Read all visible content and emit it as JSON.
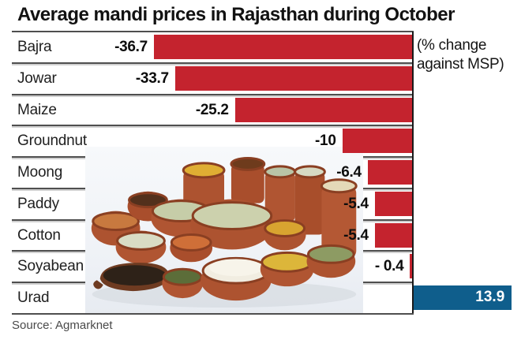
{
  "title": "Average mandi prices in Rajasthan during October",
  "note": "(% change against MSP)",
  "source": "Source: Agmarknet",
  "image": {
    "name": "grains-and-pulses-in-terracotta-pots"
  },
  "colors": {
    "negative_bar": "#c4232e",
    "positive_bar": "#0f5e8c",
    "separator": "#4f4f4f",
    "axis": "#1a1a1a"
  },
  "chart_data": {
    "type": "bar",
    "orientation": "horizontal",
    "title": "Average mandi prices in Rajasthan during October",
    "unit_note": "(% change against MSP)",
    "source": "Source: Agmarknet",
    "categories": [
      "Bajra",
      "Jowar",
      "Maize",
      "Groundnut",
      "Moong",
      "Paddy",
      "Cotton",
      "Soyabean",
      "Urad"
    ],
    "values": [
      -36.7,
      -33.7,
      -25.2,
      -10,
      -6.4,
      -5.4,
      -5.4,
      -0.4,
      13.9
    ],
    "value_labels": [
      "-36.7",
      "-33.7",
      "-25.2",
      "-10",
      "-6.4",
      "-5.4",
      "-5.4",
      "- 0.4",
      "13.9"
    ],
    "bar_colors": {
      "negative": "#c4232e",
      "positive": "#0f5e8c"
    },
    "zero_axis": 0,
    "xlim": [
      -56.9,
      16.3
    ],
    "grid": false,
    "legend_position": "none",
    "note_position": "top-right"
  }
}
